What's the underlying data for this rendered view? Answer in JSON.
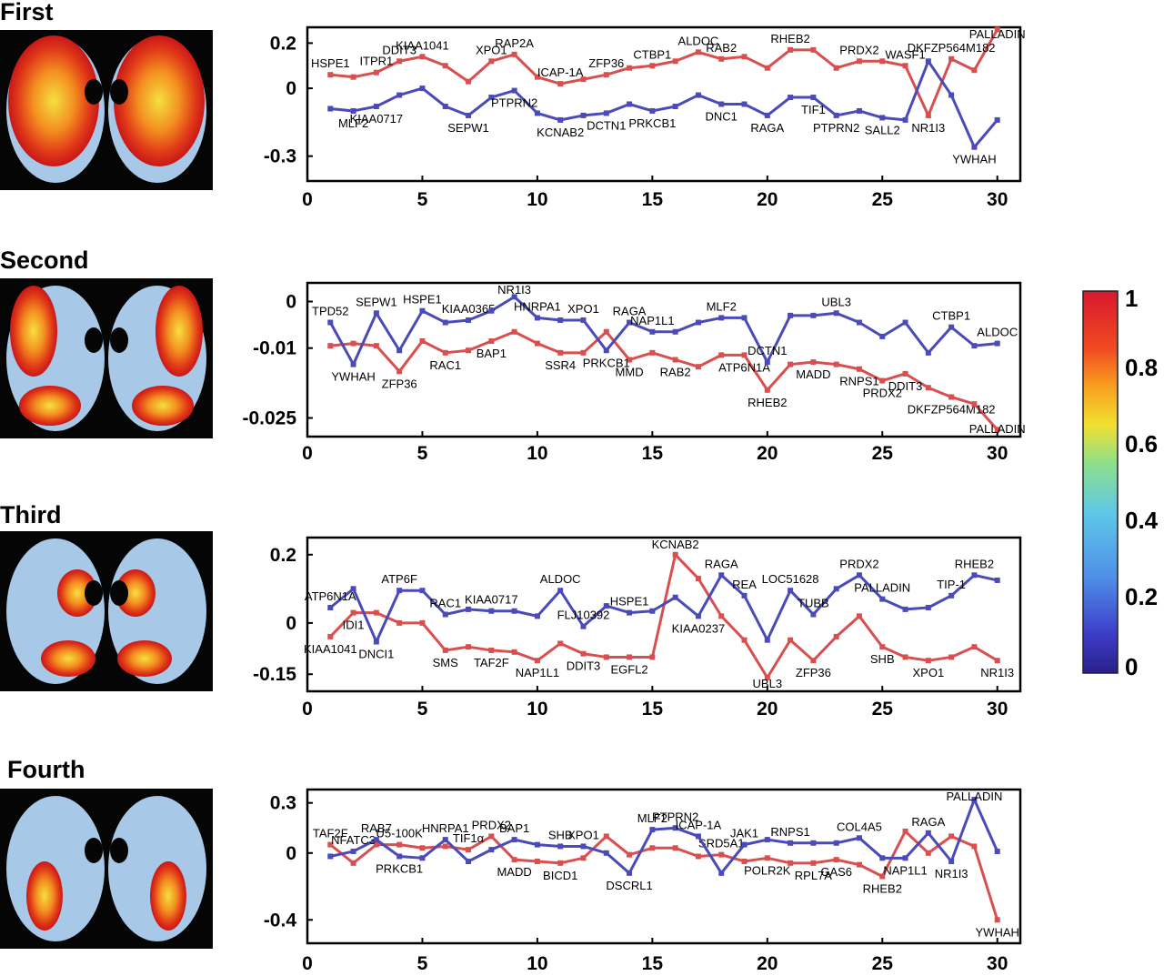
{
  "colors": {
    "red_series": "#d94f4f",
    "blue_series": "#4a4ab8",
    "brain_background": "#050505",
    "brain_tissue": "#a8c8e8"
  },
  "colorbar": {
    "ticks": [
      "1",
      "0.8",
      "0.6",
      "0.4",
      "0.2",
      "0"
    ],
    "values": [
      1,
      0.8,
      0.6,
      0.4,
      0.2,
      0
    ]
  },
  "chart_data": [
    {
      "type": "line",
      "title": "First",
      "xlim": [
        0,
        31
      ],
      "ylim": [
        -0.41,
        0.27
      ],
      "xticks": [
        0,
        5,
        10,
        15,
        20,
        25,
        30
      ],
      "yticks": [
        0.2,
        0,
        -0.3
      ],
      "ytick_labels": [
        "0.2",
        "0",
        "-0.3"
      ],
      "series": [
        {
          "color": "red",
          "x": [
            1,
            2,
            3,
            4,
            5,
            6,
            7,
            8,
            9,
            10,
            11,
            12,
            13,
            14,
            15,
            16,
            17,
            18,
            19,
            20,
            21,
            22,
            23,
            24,
            25,
            26,
            27,
            28,
            29,
            30
          ],
          "y": [
            0.06,
            0.05,
            0.07,
            0.12,
            0.14,
            0.1,
            0.03,
            0.12,
            0.15,
            0.05,
            0.02,
            0.04,
            0.06,
            0.09,
            0.1,
            0.12,
            0.16,
            0.13,
            0.14,
            0.09,
            0.17,
            0.17,
            0.09,
            0.12,
            0.12,
            0.1,
            -0.12,
            0.13,
            0.08,
            0.26
          ],
          "labels": [
            "HSPE1",
            "",
            "ITPR1",
            "DDIT3",
            "KIAA1041",
            "",
            "",
            "XPO1",
            "RAP2A",
            "",
            "ICAP-1A",
            "",
            "ZFP36",
            "",
            "CTBP1",
            "",
            "ALDOC",
            "RAB2",
            "",
            "",
            "RHEB2",
            "",
            "",
            "PRDX2",
            "",
            "WASF1",
            "NR1I3",
            "DKFZP564M182",
            "",
            "PALLADIN"
          ]
        },
        {
          "color": "blue",
          "x": [
            1,
            2,
            3,
            4,
            5,
            6,
            7,
            8,
            9,
            10,
            11,
            12,
            13,
            14,
            15,
            16,
            17,
            18,
            19,
            20,
            21,
            22,
            23,
            24,
            25,
            26,
            27,
            28,
            29,
            30
          ],
          "y": [
            -0.09,
            -0.1,
            -0.08,
            -0.03,
            0,
            -0.08,
            -0.12,
            -0.04,
            -0.01,
            -0.11,
            -0.14,
            -0.12,
            -0.11,
            -0.07,
            -0.1,
            -0.08,
            -0.03,
            -0.07,
            -0.07,
            -0.12,
            -0.04,
            -0.04,
            -0.12,
            -0.1,
            -0.13,
            -0.14,
            0.12,
            -0.03,
            -0.26,
            -0.14
          ],
          "labels": [
            "",
            "MLF2",
            "KIAA0717",
            "",
            "",
            "",
            "SEPW1",
            "",
            "PTPRN2",
            "",
            "KCNAB2",
            "",
            "DCTN1",
            "",
            "PRKCB1",
            "",
            "",
            "DNC1",
            "",
            "RAGA",
            "",
            "TIF1",
            "PTPRN2",
            "",
            "SALL2",
            "",
            "",
            "",
            "YWHAH",
            ""
          ]
        }
      ]
    },
    {
      "type": "line",
      "title": "Second",
      "xlim": [
        0,
        31
      ],
      "ylim": [
        -0.029,
        0.004
      ],
      "xticks": [
        0,
        5,
        10,
        15,
        20,
        25,
        30
      ],
      "yticks": [
        0,
        -0.01,
        -0.025
      ],
      "ytick_labels": [
        "0",
        "-0.01",
        "-0.025"
      ],
      "series": [
        {
          "color": "red",
          "x": [
            1,
            2,
            3,
            4,
            5,
            6,
            7,
            8,
            9,
            10,
            11,
            12,
            13,
            14,
            15,
            16,
            17,
            18,
            19,
            20,
            21,
            22,
            23,
            24,
            25,
            26,
            27,
            28,
            29,
            30
          ],
          "y": [
            -0.0095,
            -0.009,
            -0.0095,
            -0.015,
            -0.0085,
            -0.011,
            -0.0105,
            -0.0085,
            -0.0065,
            -0.009,
            -0.011,
            -0.011,
            -0.0065,
            -0.0125,
            -0.011,
            -0.0125,
            -0.014,
            -0.0115,
            -0.0115,
            -0.019,
            -0.0135,
            -0.013,
            -0.0135,
            -0.0145,
            -0.017,
            -0.0155,
            -0.0185,
            -0.0205,
            -0.022,
            -0.0275
          ],
          "labels": [
            "",
            "",
            "",
            "ZFP36",
            "",
            "RAC1",
            "",
            "BAP1",
            "",
            "",
            "SSR4",
            "",
            "",
            "MMD",
            "",
            "RAB2",
            "",
            "",
            "ATP6N1A",
            "RHEB2",
            "",
            "MADD",
            "",
            "RNPS1",
            "PRDX2",
            "DDIT3",
            "",
            "DKFZP564M182",
            "",
            "PALLADIN"
          ]
        },
        {
          "color": "blue",
          "x": [
            1,
            2,
            3,
            4,
            5,
            6,
            7,
            8,
            9,
            10,
            11,
            12,
            13,
            14,
            15,
            16,
            17,
            18,
            19,
            20,
            21,
            22,
            23,
            24,
            25,
            26,
            27,
            28,
            29,
            30
          ],
          "y": [
            -0.0045,
            -0.0135,
            -0.0025,
            -0.0105,
            -0.002,
            -0.0045,
            -0.004,
            -0.002,
            0.001,
            -0.0035,
            -0.004,
            -0.004,
            -0.0105,
            -0.0045,
            -0.0065,
            -0.0065,
            -0.0045,
            -0.0035,
            -0.0035,
            -0.013,
            -0.003,
            -0.003,
            -0.0025,
            -0.0045,
            -0.0075,
            -0.0045,
            -0.011,
            -0.0055,
            -0.0095,
            -0.009
          ],
          "labels": [
            "TPD52",
            "YWHAH",
            "SEPW1",
            "",
            "HSPE1",
            "",
            "KIAA0365",
            "",
            "NR1I3",
            "HNRPA1",
            "",
            "XPO1",
            "PRKCB1",
            "RAGA",
            "NAP1L1",
            "",
            "",
            "MLF2",
            "",
            "DCTN1",
            "",
            "",
            "UBL3",
            "",
            "",
            "",
            "",
            "CTBP1",
            "",
            "ALDOC"
          ]
        }
      ]
    },
    {
      "type": "line",
      "title": "Third",
      "xlim": [
        0,
        31
      ],
      "ylim": [
        -0.2,
        0.25
      ],
      "xticks": [
        0,
        5,
        10,
        15,
        20,
        25,
        30
      ],
      "yticks": [
        0.2,
        0,
        -0.15
      ],
      "ytick_labels": [
        "0.2",
        "0",
        "-0.15"
      ],
      "series": [
        {
          "color": "red",
          "x": [
            1,
            2,
            3,
            4,
            5,
            6,
            7,
            8,
            9,
            10,
            11,
            12,
            13,
            14,
            15,
            16,
            17,
            18,
            19,
            20,
            21,
            22,
            23,
            24,
            25,
            26,
            27,
            28,
            29,
            30
          ],
          "y": [
            -0.04,
            0.03,
            0.03,
            0.0,
            0.0,
            -0.08,
            -0.07,
            -0.08,
            -0.085,
            -0.11,
            -0.06,
            -0.09,
            -0.1,
            -0.1,
            -0.1,
            0.2,
            0.13,
            0.02,
            -0.05,
            -0.16,
            -0.05,
            -0.11,
            -0.04,
            0.02,
            -0.07,
            -0.1,
            -0.11,
            -0.1,
            -0.07,
            -0.11
          ],
          "labels": [
            "KIAA1041",
            "IDI1",
            "",
            "",
            "",
            "SMS",
            "",
            "TAF2F",
            "",
            "NAP1L1",
            "",
            "DDIT3",
            "",
            "EGFL2",
            "",
            "KCNAB2",
            "",
            "",
            "",
            "UBL3",
            "",
            "ZFP36",
            "",
            "",
            "SHB",
            "",
            "XPO1",
            "",
            "",
            "NR1I3"
          ]
        },
        {
          "color": "blue",
          "x": [
            1,
            2,
            3,
            4,
            5,
            6,
            7,
            8,
            9,
            10,
            11,
            12,
            13,
            14,
            15,
            16,
            17,
            18,
            19,
            20,
            21,
            22,
            23,
            24,
            25,
            26,
            27,
            28,
            29,
            30
          ],
          "y": [
            0.045,
            0.1,
            -0.055,
            0.095,
            0.095,
            0.025,
            0.04,
            0.035,
            0.035,
            0.02,
            0.095,
            -0.01,
            0.05,
            0.03,
            0.035,
            0.075,
            0.02,
            0.14,
            0.08,
            -0.05,
            0.095,
            0.025,
            0.1,
            0.14,
            0.07,
            0.04,
            0.045,
            0.08,
            0.14,
            0.125
          ],
          "labels": [
            "ATP6N1A",
            "",
            "DNCI1",
            "ATP6F",
            "",
            "RAC1",
            "",
            "KIAA0717",
            "",
            "",
            "ALDOC",
            "FLJ10392",
            "",
            "HSPE1",
            "",
            "",
            "KIAA0237",
            "RAGA",
            "REA",
            "",
            "LOC51628",
            "TUBB",
            "",
            "PRDX2",
            "PALLADIN",
            "",
            "",
            "TIP-1",
            "RHEB2",
            ""
          ]
        }
      ]
    },
    {
      "type": "line",
      "title": "Fourth",
      "xlim": [
        0,
        31
      ],
      "ylim": [
        -0.54,
        0.38
      ],
      "xticks": [
        0,
        5,
        10,
        15,
        20,
        25,
        30
      ],
      "yticks": [
        0.3,
        0,
        -0.4
      ],
      "ytick_labels": [
        "0.3",
        "0",
        "-0.4"
      ],
      "series": [
        {
          "color": "red",
          "x": [
            1,
            2,
            3,
            4,
            5,
            6,
            7,
            8,
            9,
            10,
            11,
            12,
            13,
            14,
            15,
            16,
            17,
            18,
            19,
            20,
            21,
            22,
            23,
            24,
            25,
            26,
            27,
            28,
            29,
            30
          ],
          "y": [
            0.05,
            -0.06,
            0.05,
            0.05,
            0.03,
            0.04,
            0.02,
            0.1,
            -0.04,
            -0.05,
            -0.06,
            -0.03,
            0.1,
            -0.01,
            0.03,
            0.03,
            -0.02,
            -0.01,
            -0.05,
            -0.03,
            -0.06,
            -0.06,
            -0.04,
            -0.07,
            -0.14,
            0.13,
            0.0,
            0.1,
            0.04,
            -0.4
          ],
          "labels": [
            "TAF2F",
            "",
            "",
            "U5-100K",
            "",
            "",
            "TIF1α",
            "PRDX2",
            "MADD",
            "",
            "BICD1",
            "",
            "",
            "",
            "",
            "",
            "",
            "SRD5A1",
            "",
            "POLR2K",
            "",
            "RPL7A",
            "GAS6",
            "",
            "RHEB2",
            "",
            "",
            "",
            "",
            "YWHAH"
          ]
        },
        {
          "color": "blue",
          "x": [
            1,
            2,
            3,
            4,
            5,
            6,
            7,
            8,
            9,
            10,
            11,
            12,
            13,
            14,
            15,
            16,
            17,
            18,
            19,
            20,
            21,
            22,
            23,
            24,
            25,
            26,
            27,
            28,
            29,
            30
          ],
          "y": [
            -0.02,
            0.01,
            0.08,
            -0.02,
            -0.03,
            0.08,
            -0.05,
            0.02,
            0.08,
            0.05,
            0.04,
            0.04,
            0.0,
            -0.12,
            0.14,
            0.15,
            0.1,
            -0.12,
            0.05,
            0.08,
            0.06,
            0.06,
            0.06,
            0.09,
            -0.03,
            -0.03,
            0.12,
            -0.05,
            0.32,
            0.01
          ],
          "labels": [
            "",
            "NFATC3",
            "RAB7",
            "PRKCB1",
            "",
            "HNRPA1",
            "",
            "",
            "BAP1",
            "",
            "SHB",
            "XPO1",
            "",
            "DSCRL1",
            "MLF2",
            "PTPRN2",
            "ICAP-1A",
            "",
            "JAK1",
            "",
            "RNPS1",
            "",
            "",
            "COL4A5",
            "",
            "NAP1L1",
            "RAGA",
            "NR1I3",
            "PALLADIN",
            ""
          ]
        }
      ]
    }
  ]
}
